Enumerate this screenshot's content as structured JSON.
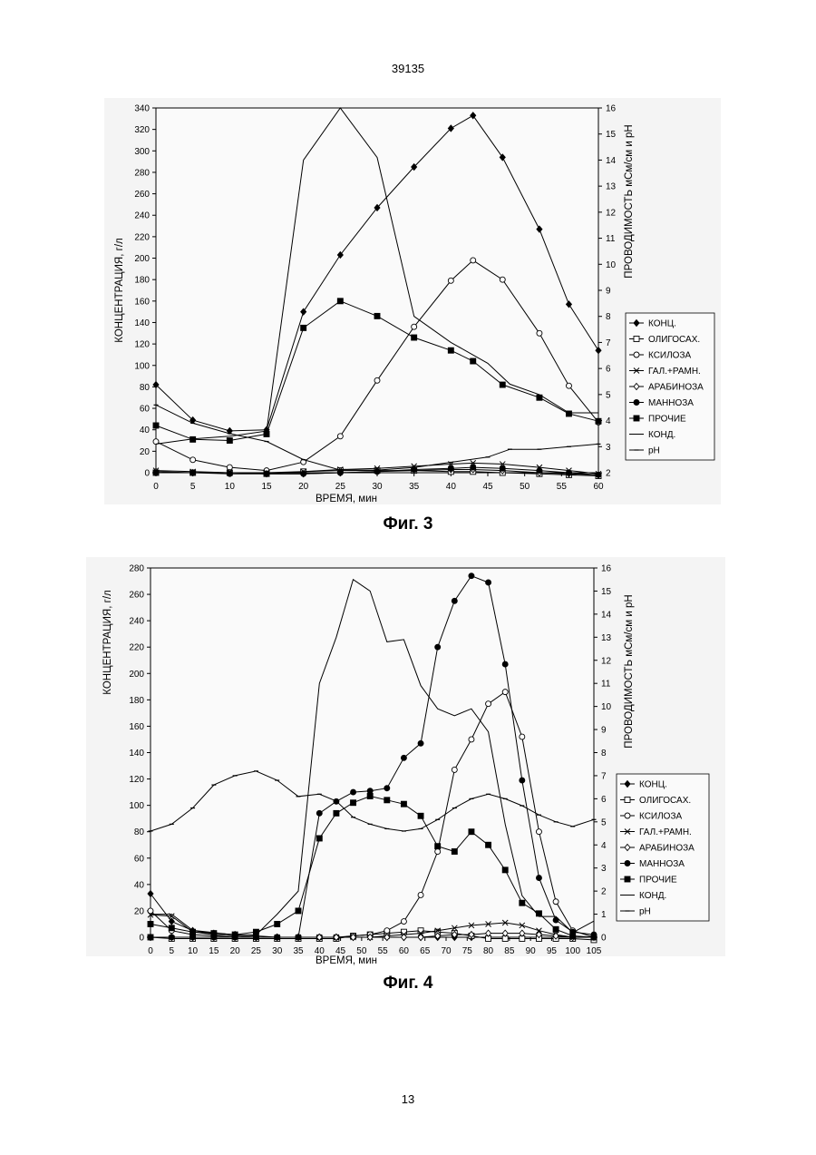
{
  "page": {
    "top_number": "39135",
    "bottom_number": "13"
  },
  "legend_labels": [
    "КОНЦ.",
    "ОЛИГОСАХ.",
    "КСИЛОЗА",
    "ГАЛ.+РАМН.",
    "АРАБИНОЗА",
    "МАННОЗА",
    "ПРОЧИЕ",
    "КОНД.",
    "pH"
  ],
  "chart_data": [
    {
      "caption": "Фиг. 3",
      "type": "line",
      "xlabel": "ВРЕМЯ, мин",
      "ylabel": "КОНЦЕНТРАЦИЯ, г/л",
      "y2label": "ПРОВОДИМОСТЬ мСм/см и pH",
      "xlim": [
        0,
        60
      ],
      "ylim": [
        0,
        340
      ],
      "y2lim": [
        2,
        16
      ],
      "x_ticks": [
        0,
        5,
        10,
        15,
        20,
        25,
        30,
        35,
        40,
        45,
        50,
        55,
        60
      ],
      "y_ticks": [
        0,
        20,
        40,
        60,
        80,
        100,
        120,
        140,
        160,
        180,
        200,
        220,
        240,
        260,
        280,
        300,
        320,
        340
      ],
      "y2_ticks": [
        2,
        3,
        4,
        5,
        6,
        7,
        8,
        9,
        10,
        11,
        12,
        13,
        14,
        15,
        16
      ],
      "series": [
        {
          "name": "КОНЦ.",
          "axis": "left",
          "marker": "diamond",
          "x": [
            0,
            5,
            10,
            15,
            20,
            25,
            30,
            35,
            40,
            43,
            47,
            52,
            56,
            60
          ],
          "y": [
            82,
            49,
            39,
            40,
            150,
            203,
            247,
            285,
            321,
            333,
            294,
            227,
            157,
            114
          ]
        },
        {
          "name": "ОЛИГОСАХ.",
          "axis": "left",
          "marker": "square-open",
          "x": [
            0,
            5,
            10,
            15,
            20,
            25,
            30,
            35,
            40,
            43,
            47,
            52,
            56,
            60
          ],
          "y": [
            0,
            0,
            0,
            -1,
            1,
            2,
            2,
            2,
            1,
            1,
            0,
            -1,
            -2,
            -3
          ]
        },
        {
          "name": "КСИЛОЗА",
          "axis": "left",
          "marker": "circle-open",
          "x": [
            0,
            5,
            10,
            15,
            20,
            25,
            30,
            35,
            40,
            43,
            47,
            52,
            56,
            60
          ],
          "y": [
            29,
            12,
            5,
            2,
            10,
            34,
            86,
            136,
            179,
            198,
            180,
            130,
            81,
            47
          ]
        },
        {
          "name": "ГАЛ.+РАМН.",
          "axis": "left",
          "marker": "x",
          "x": [
            0,
            5,
            10,
            15,
            20,
            25,
            30,
            35,
            40,
            43,
            47,
            52,
            56,
            60
          ],
          "y": [
            2,
            1,
            0,
            0,
            1,
            3,
            4,
            6,
            8,
            9,
            8,
            5,
            2,
            -1
          ]
        },
        {
          "name": "АРАБИНОЗА",
          "axis": "left",
          "marker": "diamond-open",
          "x": [
            0,
            5,
            10,
            15,
            20,
            25,
            30,
            35,
            40,
            43,
            47,
            52,
            56,
            60
          ],
          "y": [
            1,
            0,
            0,
            -1,
            -1,
            0,
            1,
            2,
            3,
            3,
            2,
            0,
            -1,
            -2
          ]
        },
        {
          "name": "МАННОЗА",
          "axis": "left",
          "marker": "circle",
          "x": [
            0,
            5,
            10,
            15,
            20,
            25,
            30,
            35,
            40,
            43,
            47,
            52,
            56,
            60
          ],
          "y": [
            0,
            0,
            -1,
            -1,
            -1,
            0,
            1,
            3,
            4,
            5,
            4,
            2,
            0,
            -2
          ]
        },
        {
          "name": "ПРОЧИЕ",
          "axis": "left",
          "marker": "square",
          "x": [
            0,
            5,
            10,
            15,
            20,
            25,
            30,
            35,
            40,
            43,
            47,
            52,
            56,
            60
          ],
          "y": [
            44,
            31,
            30,
            36,
            135,
            160,
            146,
            126,
            114,
            104,
            82,
            70,
            55,
            48
          ]
        },
        {
          "name": "КОНД.",
          "axis": "right",
          "marker": "none",
          "x": [
            0,
            5,
            10,
            15,
            20,
            25,
            30,
            35,
            40,
            45,
            48,
            52,
            56,
            60
          ],
          "y": [
            3.1,
            3.3,
            3.4,
            3.6,
            14.0,
            16.0,
            14.1,
            8.0,
            7.0,
            6.2,
            5.4,
            5.0,
            4.3,
            4.3
          ]
        },
        {
          "name": "pH",
          "axis": "right",
          "marker": "tick",
          "x": [
            0,
            5,
            10,
            15,
            20,
            25,
            30,
            35,
            40,
            45,
            48,
            52,
            56,
            60
          ],
          "y": [
            4.6,
            3.9,
            3.5,
            3.2,
            2.5,
            2.1,
            2.1,
            2.2,
            2.4,
            2.6,
            2.9,
            2.9,
            3.0,
            3.1
          ]
        }
      ]
    },
    {
      "caption": "Фиг. 4",
      "type": "line",
      "xlabel": "ВРЕМЯ, мин",
      "ylabel": "КОНЦЕНТРАЦИЯ, г/л",
      "y2label": "ПРОВОДИМОСТЬ мСм/см и pH",
      "xlim": [
        0,
        105
      ],
      "ylim": [
        0,
        280
      ],
      "y2lim": [
        0,
        16
      ],
      "x_ticks": [
        0,
        5,
        10,
        15,
        20,
        25,
        30,
        35,
        40,
        45,
        50,
        55,
        60,
        65,
        70,
        75,
        80,
        85,
        90,
        95,
        100,
        105
      ],
      "y_ticks": [
        0,
        20,
        40,
        60,
        80,
        100,
        120,
        140,
        160,
        180,
        200,
        220,
        240,
        260,
        280
      ],
      "y2_ticks": [
        0,
        1,
        2,
        3,
        4,
        5,
        6,
        7,
        8,
        9,
        10,
        11,
        12,
        13,
        14,
        15,
        16
      ],
      "series": [
        {
          "name": "КОНЦ.",
          "axis": "left",
          "marker": "diamond",
          "x": [
            0,
            5,
            10,
            15,
            20,
            25,
            30,
            35,
            40,
            44,
            48,
            52,
            56,
            60,
            64,
            68,
            72,
            76,
            80,
            84,
            88,
            92,
            96,
            100,
            105
          ],
          "y": [
            33,
            12,
            5,
            3,
            2,
            1,
            0,
            0,
            0,
            0,
            0,
            0,
            0,
            0,
            0,
            0,
            0,
            0,
            0,
            0,
            0,
            0,
            0,
            0,
            0
          ]
        },
        {
          "name": "ОЛИГОСАХ.",
          "axis": "left",
          "marker": "square-open",
          "x": [
            0,
            5,
            10,
            15,
            20,
            25,
            30,
            35,
            40,
            44,
            48,
            52,
            56,
            60,
            64,
            68,
            72,
            76,
            80,
            84,
            88,
            92,
            96,
            100,
            105
          ],
          "y": [
            0,
            -1,
            -1,
            -1,
            -1,
            -1,
            -1,
            -1,
            -1,
            -1,
            1,
            2,
            3,
            4,
            5,
            4,
            3,
            1,
            -1,
            -1,
            -1,
            -1,
            -1,
            -1,
            -2
          ]
        },
        {
          "name": "КСИЛОЗА",
          "axis": "left",
          "marker": "circle-open",
          "x": [
            0,
            5,
            10,
            15,
            20,
            25,
            30,
            35,
            40,
            44,
            48,
            52,
            56,
            60,
            64,
            68,
            72,
            76,
            80,
            84,
            88,
            92,
            96,
            100,
            105
          ],
          "y": [
            20,
            5,
            2,
            1,
            0,
            0,
            0,
            0,
            0,
            0,
            1,
            2,
            5,
            12,
            32,
            65,
            127,
            150,
            177,
            186,
            152,
            80,
            27,
            5,
            0
          ]
        },
        {
          "name": "ГАЛ.+РАМН.",
          "axis": "left",
          "marker": "x",
          "x": [
            0,
            5,
            10,
            15,
            20,
            25,
            30,
            35,
            40,
            44,
            48,
            52,
            56,
            60,
            64,
            68,
            72,
            76,
            80,
            84,
            88,
            92,
            96,
            100,
            105
          ],
          "y": [
            17,
            16,
            4,
            2,
            1,
            0,
            0,
            0,
            0,
            0,
            0,
            0,
            1,
            2,
            3,
            5,
            7,
            9,
            10,
            11,
            9,
            5,
            2,
            0,
            0
          ]
        },
        {
          "name": "АРАБИНОЗА",
          "axis": "left",
          "marker": "diamond-open",
          "x": [
            0,
            5,
            10,
            15,
            20,
            25,
            30,
            35,
            40,
            44,
            48,
            52,
            56,
            60,
            64,
            68,
            72,
            76,
            80,
            84,
            88,
            92,
            96,
            100,
            105
          ],
          "y": [
            0,
            0,
            0,
            0,
            0,
            0,
            0,
            0,
            0,
            0,
            0,
            0,
            0,
            0,
            0,
            1,
            2,
            2,
            3,
            3,
            3,
            2,
            1,
            0,
            0
          ]
        },
        {
          "name": "МАННОЗА",
          "axis": "left",
          "marker": "circle",
          "x": [
            0,
            5,
            10,
            15,
            20,
            25,
            30,
            35,
            40,
            44,
            48,
            52,
            56,
            60,
            64,
            68,
            72,
            76,
            80,
            84,
            88,
            92,
            96,
            100,
            105
          ],
          "y": [
            0,
            0,
            0,
            0,
            0,
            0,
            0,
            0,
            94,
            103,
            110,
            111,
            113,
            136,
            147,
            220,
            255,
            274,
            269,
            207,
            119,
            45,
            13,
            4,
            2
          ]
        },
        {
          "name": "ПРОЧИЕ",
          "axis": "left",
          "marker": "square",
          "x": [
            0,
            5,
            10,
            15,
            20,
            25,
            30,
            35,
            40,
            44,
            48,
            52,
            56,
            60,
            64,
            68,
            72,
            76,
            80,
            84,
            88,
            92,
            96,
            100,
            105
          ],
          "y": [
            10,
            7,
            4,
            3,
            2,
            4,
            10,
            20,
            75,
            94,
            102,
            107,
            104,
            101,
            92,
            69,
            65,
            80,
            70,
            51,
            26,
            18,
            6,
            1,
            0
          ]
        },
        {
          "name": "КОНД.",
          "axis": "right",
          "marker": "none",
          "x": [
            0,
            5,
            10,
            15,
            20,
            25,
            30,
            35,
            40,
            44,
            48,
            52,
            56,
            60,
            64,
            68,
            72,
            76,
            80,
            84,
            88,
            92,
            96,
            100,
            105
          ],
          "y": [
            1.0,
            1.0,
            0.3,
            0.2,
            0.1,
            0.1,
            1.0,
            2.0,
            11.0,
            13.0,
            15.5,
            15.0,
            12.8,
            12.9,
            10.9,
            9.9,
            9.6,
            9.9,
            8.9,
            4.9,
            1.8,
            0.9,
            0.9,
            0.2,
            0.7
          ]
        },
        {
          "name": "pH",
          "axis": "right",
          "marker": "tick",
          "x": [
            0,
            5,
            10,
            15,
            20,
            25,
            30,
            35,
            40,
            44,
            48,
            52,
            56,
            60,
            64,
            68,
            72,
            76,
            80,
            84,
            88,
            92,
            96,
            100,
            105
          ],
          "y": [
            4.6,
            4.9,
            5.6,
            6.6,
            7.0,
            7.2,
            6.8,
            6.1,
            6.2,
            5.9,
            5.2,
            4.9,
            4.7,
            4.6,
            4.7,
            5.1,
            5.6,
            6.0,
            6.2,
            6.0,
            5.7,
            5.3,
            5.0,
            4.8,
            5.1
          ]
        }
      ]
    }
  ]
}
